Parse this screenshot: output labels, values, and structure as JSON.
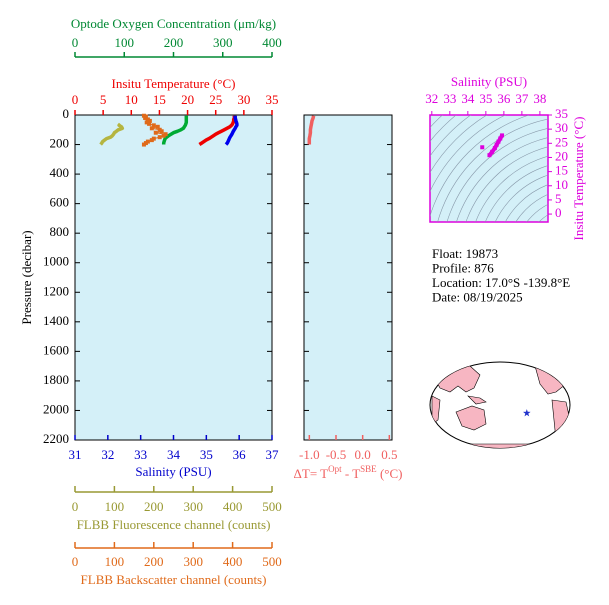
{
  "chart_data": [
    {
      "type": "profile",
      "ylabel": "Pressure (decibar)",
      "ylim": [
        0,
        2200
      ],
      "yticks": [
        0,
        200,
        400,
        600,
        800,
        1000,
        1200,
        1400,
        1600,
        1800,
        2000,
        2200
      ],
      "background": "#d4f0f8",
      "pressure": [
        5,
        10,
        20,
        30,
        40,
        50,
        60,
        70,
        80,
        90,
        100,
        110,
        120,
        130,
        140,
        150,
        160,
        170,
        180,
        190,
        200
      ],
      "x_axes": [
        {
          "label": "Insitu Temperature (°C)",
          "color": "#ee0000",
          "lim": [
            0,
            35
          ],
          "ticks": [
            0,
            5,
            10,
            15,
            20,
            25,
            30,
            35
          ]
        },
        {
          "label": "Optode Oxygen Concentration (μm/kg)",
          "color": "#008833",
          "lim": [
            0,
            400
          ],
          "ticks": [
            0,
            100,
            200,
            300,
            400
          ]
        },
        {
          "label": "Salinity (PSU)",
          "color": "#0000cc",
          "lim": [
            31,
            37
          ],
          "ticks": [
            31,
            32,
            33,
            34,
            35,
            36,
            37
          ]
        },
        {
          "label": "FLBB Fluorescence channel (counts)",
          "color": "#999933",
          "lim": [
            0,
            500
          ],
          "ticks": [
            0,
            100,
            200,
            300,
            400,
            500
          ]
        },
        {
          "label": "FLBB Backscatter channel (counts)",
          "color": "#e06a1a",
          "lim": [
            0,
            500
          ],
          "ticks": [
            0,
            100,
            200,
            300,
            400,
            500
          ]
        }
      ],
      "series": [
        {
          "axis": 0,
          "color": "#ee0000",
          "values": [
            28.3,
            28.3,
            28.3,
            28.2,
            28.2,
            28.1,
            28.0,
            27.8,
            27.5,
            27.0,
            26.5,
            26.0,
            25.5,
            25.0,
            24.6,
            24.2,
            23.8,
            23.3,
            22.9,
            22.5,
            22.1
          ]
        },
        {
          "axis": 2,
          "color": "#0000ee",
          "values": [
            35.88,
            35.88,
            35.88,
            35.89,
            35.9,
            35.92,
            35.93,
            35.93,
            35.9,
            35.88,
            35.85,
            35.82,
            35.8,
            35.78,
            35.75,
            35.72,
            35.7,
            35.68,
            35.66,
            35.64,
            35.6
          ]
        },
        {
          "axis": 1,
          "color": "#00aa33",
          "values": [
            226,
            226,
            226,
            226,
            226,
            226,
            225,
            224,
            222,
            220,
            215,
            208,
            200,
            195,
            190,
            186,
            183,
            182,
            181,
            180,
            180
          ]
        },
        {
          "axis": 3,
          "color": "#b5b540",
          "values": [
            null,
            null,
            null,
            null,
            null,
            null,
            115,
            112,
            118,
            120,
            110,
            105,
            100,
            98,
            95,
            90,
            80,
            75,
            70,
            68,
            65
          ]
        },
        {
          "axis": 4,
          "color": "#e06a1a",
          "marker": "square",
          "values": [
            175,
            180,
            178,
            185,
            190,
            182,
            188,
            200,
            210,
            195,
            215,
            220,
            205,
            230,
            225,
            215,
            200,
            195,
            185,
            180,
            175
          ]
        }
      ]
    },
    {
      "type": "profile",
      "ylim": [
        0,
        2200
      ],
      "yticks": [
        0,
        200,
        400,
        600,
        800,
        1000,
        1200,
        1400,
        1600,
        1800,
        2000,
        2200
      ],
      "background": "#d4f0f8",
      "pressure": [
        5,
        20,
        40,
        60,
        80,
        100,
        120,
        140,
        160,
        180,
        200
      ],
      "x_axes": [
        {
          "label_parts": [
            "ΔT= T",
            "Opt",
            " - T",
            "SBE",
            " (°C)"
          ],
          "color": "#f06060",
          "lim": [
            -1.1,
            0.55
          ],
          "ticks": [
            {
              "value": -1,
              "label": "-1.0"
            },
            {
              "value": -0.5,
              "label": "-0.5"
            },
            {
              "value": 0,
              "label": "0.0"
            },
            0.5
          ]
        }
      ],
      "series": [
        {
          "axis": 0,
          "color": "#f06060",
          "values": [
            -0.92,
            -0.93,
            -0.95,
            -0.96,
            -0.97,
            -0.98,
            -0.98,
            -0.99,
            -1.0,
            -1.0,
            -1.0
          ]
        }
      ]
    },
    {
      "type": "scatter",
      "xlabel": "Salinity (PSU)",
      "ylabel": "Insitu Temperature (°C)",
      "color": "#dd00dd",
      "background": "#d4f0f8",
      "xlim": [
        31.9,
        38.45
      ],
      "xticks": [
        32,
        33,
        34,
        35,
        36,
        37,
        38
      ],
      "ylim": [
        -2.8,
        35
      ],
      "yticks": [
        0,
        5,
        10,
        15,
        20,
        25,
        30,
        35
      ],
      "x": [
        35.2,
        35.35,
        35.5,
        35.6,
        35.7,
        35.8,
        35.9,
        34.8
      ],
      "values": [
        20.8,
        22.0,
        23.3,
        24.5,
        25.6,
        26.7,
        27.8,
        23.6
      ]
    },
    {
      "type": "map",
      "center_lon": 150,
      "lon": -139.8,
      "lat": -17.0,
      "color": "#2233cc"
    }
  ],
  "info": [
    "Float:  19873",
    "Profile:  876",
    "Location:  17.0°S  -139.8°E",
    "Date:  08/19/2025"
  ]
}
